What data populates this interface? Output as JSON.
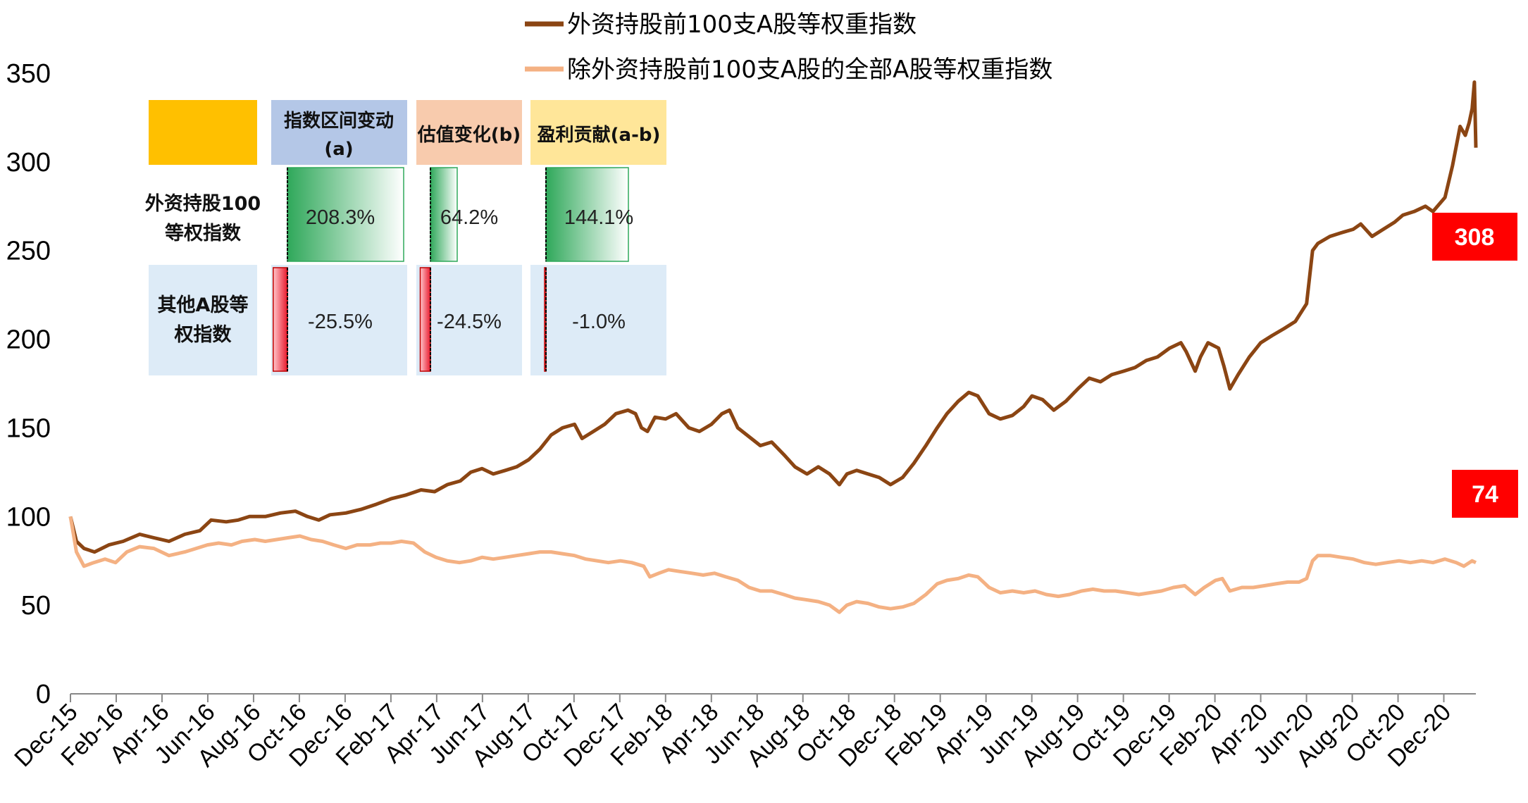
{
  "chart_data": {
    "type": "line",
    "title": "",
    "xlabel": "",
    "ylabel": "",
    "ylim": [
      0,
      350
    ],
    "yticks": [
      0,
      50,
      100,
      150,
      200,
      250,
      300,
      350
    ],
    "xlim": [
      "2015-12-31",
      "2021-02-10"
    ],
    "xtick_labels": [
      "Dec-15",
      "Feb-16",
      "Apr-16",
      "Jun-16",
      "Aug-16",
      "Oct-16",
      "Dec-16",
      "Feb-17",
      "Apr-17",
      "Jun-17",
      "Aug-17",
      "Oct-17",
      "Dec-17",
      "Feb-18",
      "Apr-18",
      "Jun-18",
      "Aug-18",
      "Oct-18",
      "Dec-18",
      "Feb-19",
      "Apr-19",
      "Jun-19",
      "Aug-19",
      "Oct-19",
      "Dec-19",
      "Feb-20",
      "Apr-20",
      "Jun-20",
      "Aug-20",
      "Oct-20",
      "Dec-20"
    ],
    "grid": false,
    "legend_position": "top",
    "series": [
      {
        "name": "外资持股前100支A股等权重指数",
        "color": "#8B4513",
        "end_label": "308",
        "end_label_color": "#FF0000",
        "points": [
          [
            "2015-12-31",
            100
          ],
          [
            "2016-01-08",
            86
          ],
          [
            "2016-01-18",
            82
          ],
          [
            "2016-02-01",
            80
          ],
          [
            "2016-02-20",
            84
          ],
          [
            "2016-03-10",
            86
          ],
          [
            "2016-04-01",
            90
          ],
          [
            "2016-04-20",
            88
          ],
          [
            "2016-05-10",
            86
          ],
          [
            "2016-05-31",
            90
          ],
          [
            "2016-06-20",
            92
          ],
          [
            "2016-07-05",
            98
          ],
          [
            "2016-07-25",
            97
          ],
          [
            "2016-08-10",
            98
          ],
          [
            "2016-08-25",
            100
          ],
          [
            "2016-09-15",
            100
          ],
          [
            "2016-10-05",
            102
          ],
          [
            "2016-10-25",
            103
          ],
          [
            "2016-11-10",
            100
          ],
          [
            "2016-11-25",
            98
          ],
          [
            "2016-12-10",
            101
          ],
          [
            "2016-12-31",
            102
          ],
          [
            "2017-01-20",
            104
          ],
          [
            "2017-02-10",
            107
          ],
          [
            "2017-03-01",
            110
          ],
          [
            "2017-03-20",
            112
          ],
          [
            "2017-04-10",
            115
          ],
          [
            "2017-04-28",
            114
          ],
          [
            "2017-05-15",
            118
          ],
          [
            "2017-06-01",
            120
          ],
          [
            "2017-06-15",
            125
          ],
          [
            "2017-06-30",
            127
          ],
          [
            "2017-07-15",
            124
          ],
          [
            "2017-07-31",
            126
          ],
          [
            "2017-08-15",
            128
          ],
          [
            "2017-08-31",
            132
          ],
          [
            "2017-09-15",
            138
          ],
          [
            "2017-09-30",
            146
          ],
          [
            "2017-10-15",
            150
          ],
          [
            "2017-10-31",
            152
          ],
          [
            "2017-11-10",
            144
          ],
          [
            "2017-11-25",
            148
          ],
          [
            "2017-12-10",
            152
          ],
          [
            "2017-12-25",
            158
          ],
          [
            "2018-01-10",
            160
          ],
          [
            "2018-01-20",
            158
          ],
          [
            "2018-01-28",
            150
          ],
          [
            "2018-02-05",
            148
          ],
          [
            "2018-02-15",
            156
          ],
          [
            "2018-03-01",
            155
          ],
          [
            "2018-03-15",
            158
          ],
          [
            "2018-04-01",
            150
          ],
          [
            "2018-04-15",
            148
          ],
          [
            "2018-05-01",
            152
          ],
          [
            "2018-05-15",
            158
          ],
          [
            "2018-05-25",
            160
          ],
          [
            "2018-06-05",
            150
          ],
          [
            "2018-06-20",
            145
          ],
          [
            "2018-07-05",
            140
          ],
          [
            "2018-07-20",
            142
          ],
          [
            "2018-08-05",
            135
          ],
          [
            "2018-08-20",
            128
          ],
          [
            "2018-09-05",
            124
          ],
          [
            "2018-09-20",
            128
          ],
          [
            "2018-10-05",
            124
          ],
          [
            "2018-10-18",
            118
          ],
          [
            "2018-10-28",
            124
          ],
          [
            "2018-11-10",
            126
          ],
          [
            "2018-11-25",
            124
          ],
          [
            "2018-12-10",
            122
          ],
          [
            "2018-12-25",
            118
          ],
          [
            "2019-01-10",
            122
          ],
          [
            "2019-01-25",
            130
          ],
          [
            "2019-02-10",
            140
          ],
          [
            "2019-02-25",
            150
          ],
          [
            "2019-03-10",
            158
          ],
          [
            "2019-03-25",
            165
          ],
          [
            "2019-04-08",
            170
          ],
          [
            "2019-04-20",
            168
          ],
          [
            "2019-05-05",
            158
          ],
          [
            "2019-05-20",
            155
          ],
          [
            "2019-06-05",
            157
          ],
          [
            "2019-06-20",
            162
          ],
          [
            "2019-07-01",
            168
          ],
          [
            "2019-07-15",
            166
          ],
          [
            "2019-07-30",
            160
          ],
          [
            "2019-08-15",
            165
          ],
          [
            "2019-08-31",
            172
          ],
          [
            "2019-09-15",
            178
          ],
          [
            "2019-09-30",
            176
          ],
          [
            "2019-10-15",
            180
          ],
          [
            "2019-10-31",
            182
          ],
          [
            "2019-11-15",
            184
          ],
          [
            "2019-11-30",
            188
          ],
          [
            "2019-12-15",
            190
          ],
          [
            "2019-12-31",
            195
          ],
          [
            "2020-01-15",
            198
          ],
          [
            "2020-01-22",
            193
          ],
          [
            "2020-02-03",
            182
          ],
          [
            "2020-02-10",
            190
          ],
          [
            "2020-02-20",
            198
          ],
          [
            "2020-03-05",
            195
          ],
          [
            "2020-03-12",
            185
          ],
          [
            "2020-03-20",
            172
          ],
          [
            "2020-03-31",
            180
          ],
          [
            "2020-04-15",
            190
          ],
          [
            "2020-04-30",
            198
          ],
          [
            "2020-05-15",
            202
          ],
          [
            "2020-05-31",
            206
          ],
          [
            "2020-06-15",
            210
          ],
          [
            "2020-06-30",
            220
          ],
          [
            "2020-07-08",
            250
          ],
          [
            "2020-07-15",
            254
          ],
          [
            "2020-07-31",
            258
          ],
          [
            "2020-08-15",
            260
          ],
          [
            "2020-08-31",
            262
          ],
          [
            "2020-09-10",
            265
          ],
          [
            "2020-09-25",
            258
          ],
          [
            "2020-10-10",
            262
          ],
          [
            "2020-10-25",
            266
          ],
          [
            "2020-11-05",
            270
          ],
          [
            "2020-11-20",
            272
          ],
          [
            "2020-12-05",
            275
          ],
          [
            "2020-12-15",
            272
          ],
          [
            "2020-12-31",
            280
          ],
          [
            "2021-01-10",
            298
          ],
          [
            "2021-01-20",
            320
          ],
          [
            "2021-01-27",
            315
          ],
          [
            "2021-02-01",
            322
          ],
          [
            "2021-02-05",
            330
          ],
          [
            "2021-02-08",
            345
          ],
          [
            "2021-02-10",
            308
          ]
        ]
      },
      {
        "name": "除外资持股前100支A股的全部A股等权重指数",
        "color": "#F4B183",
        "end_label": "74",
        "end_label_color": "#FF0000",
        "points": [
          [
            "2015-12-31",
            100
          ],
          [
            "2016-01-08",
            80
          ],
          [
            "2016-01-18",
            72
          ],
          [
            "2016-01-31",
            74
          ],
          [
            "2016-02-15",
            76
          ],
          [
            "2016-02-29",
            74
          ],
          [
            "2016-03-15",
            80
          ],
          [
            "2016-04-01",
            83
          ],
          [
            "2016-04-20",
            82
          ],
          [
            "2016-05-10",
            78
          ],
          [
            "2016-05-31",
            80
          ],
          [
            "2016-06-15",
            82
          ],
          [
            "2016-06-30",
            84
          ],
          [
            "2016-07-15",
            85
          ],
          [
            "2016-08-01",
            84
          ],
          [
            "2016-08-15",
            86
          ],
          [
            "2016-09-01",
            87
          ],
          [
            "2016-09-15",
            86
          ],
          [
            "2016-09-30",
            87
          ],
          [
            "2016-10-15",
            88
          ],
          [
            "2016-10-31",
            89
          ],
          [
            "2016-11-15",
            87
          ],
          [
            "2016-11-30",
            86
          ],
          [
            "2016-12-15",
            84
          ],
          [
            "2016-12-31",
            82
          ],
          [
            "2017-01-15",
            84
          ],
          [
            "2017-02-01",
            84
          ],
          [
            "2017-02-15",
            85
          ],
          [
            "2017-03-01",
            85
          ],
          [
            "2017-03-15",
            86
          ],
          [
            "2017-03-31",
            85
          ],
          [
            "2017-04-15",
            80
          ],
          [
            "2017-04-30",
            77
          ],
          [
            "2017-05-15",
            75
          ],
          [
            "2017-05-31",
            74
          ],
          [
            "2017-06-15",
            75
          ],
          [
            "2017-06-30",
            77
          ],
          [
            "2017-07-15",
            76
          ],
          [
            "2017-07-31",
            77
          ],
          [
            "2017-08-15",
            78
          ],
          [
            "2017-08-31",
            79
          ],
          [
            "2017-09-15",
            80
          ],
          [
            "2017-09-30",
            80
          ],
          [
            "2017-10-15",
            79
          ],
          [
            "2017-10-31",
            78
          ],
          [
            "2017-11-15",
            76
          ],
          [
            "2017-11-30",
            75
          ],
          [
            "2017-12-15",
            74
          ],
          [
            "2017-12-31",
            75
          ],
          [
            "2018-01-15",
            74
          ],
          [
            "2018-01-31",
            72
          ],
          [
            "2018-02-08",
            66
          ],
          [
            "2018-02-20",
            68
          ],
          [
            "2018-03-05",
            70
          ],
          [
            "2018-03-20",
            69
          ],
          [
            "2018-04-05",
            68
          ],
          [
            "2018-04-20",
            67
          ],
          [
            "2018-05-05",
            68
          ],
          [
            "2018-05-20",
            66
          ],
          [
            "2018-06-05",
            64
          ],
          [
            "2018-06-20",
            60
          ],
          [
            "2018-07-05",
            58
          ],
          [
            "2018-07-20",
            58
          ],
          [
            "2018-08-05",
            56
          ],
          [
            "2018-08-20",
            54
          ],
          [
            "2018-09-05",
            53
          ],
          [
            "2018-09-20",
            52
          ],
          [
            "2018-10-05",
            50
          ],
          [
            "2018-10-18",
            46
          ],
          [
            "2018-10-28",
            50
          ],
          [
            "2018-11-10",
            52
          ],
          [
            "2018-11-25",
            51
          ],
          [
            "2018-12-10",
            49
          ],
          [
            "2018-12-25",
            48
          ],
          [
            "2019-01-10",
            49
          ],
          [
            "2019-01-25",
            51
          ],
          [
            "2019-02-10",
            56
          ],
          [
            "2019-02-25",
            62
          ],
          [
            "2019-03-10",
            64
          ],
          [
            "2019-03-25",
            65
          ],
          [
            "2019-04-08",
            67
          ],
          [
            "2019-04-20",
            66
          ],
          [
            "2019-05-05",
            60
          ],
          [
            "2019-05-20",
            57
          ],
          [
            "2019-06-05",
            58
          ],
          [
            "2019-06-20",
            57
          ],
          [
            "2019-07-05",
            58
          ],
          [
            "2019-07-20",
            56
          ],
          [
            "2019-08-05",
            55
          ],
          [
            "2019-08-20",
            56
          ],
          [
            "2019-09-05",
            58
          ],
          [
            "2019-09-20",
            59
          ],
          [
            "2019-10-05",
            58
          ],
          [
            "2019-10-20",
            58
          ],
          [
            "2019-11-05",
            57
          ],
          [
            "2019-11-20",
            56
          ],
          [
            "2019-12-05",
            57
          ],
          [
            "2019-12-20",
            58
          ],
          [
            "2020-01-05",
            60
          ],
          [
            "2020-01-20",
            61
          ],
          [
            "2020-02-03",
            56
          ],
          [
            "2020-02-15",
            60
          ],
          [
            "2020-03-01",
            64
          ],
          [
            "2020-03-10",
            65
          ],
          [
            "2020-03-20",
            58
          ],
          [
            "2020-04-05",
            60
          ],
          [
            "2020-04-20",
            60
          ],
          [
            "2020-05-05",
            61
          ],
          [
            "2020-05-20",
            62
          ],
          [
            "2020-06-05",
            63
          ],
          [
            "2020-06-20",
            63
          ],
          [
            "2020-06-30",
            65
          ],
          [
            "2020-07-08",
            75
          ],
          [
            "2020-07-15",
            78
          ],
          [
            "2020-07-31",
            78
          ],
          [
            "2020-08-15",
            77
          ],
          [
            "2020-08-31",
            76
          ],
          [
            "2020-09-15",
            74
          ],
          [
            "2020-09-30",
            73
          ],
          [
            "2020-10-15",
            74
          ],
          [
            "2020-10-31",
            75
          ],
          [
            "2020-11-15",
            74
          ],
          [
            "2020-11-30",
            75
          ],
          [
            "2020-12-15",
            74
          ],
          [
            "2020-12-31",
            76
          ],
          [
            "2021-01-15",
            74
          ],
          [
            "2021-01-25",
            72
          ],
          [
            "2021-02-05",
            75
          ],
          [
            "2021-02-10",
            74
          ]
        ]
      }
    ],
    "inset_table": {
      "headers": [
        "指数区间变动",
        "(a)",
        "估值变化(b)",
        "盈利贡献(a-b)"
      ],
      "header_colors": [
        "#FFC000",
        "#B4C7E7",
        "#F8CBAD",
        "#FFE699"
      ],
      "rows": [
        {
          "label_line1": "外资持股100",
          "label_line2": "等权指数",
          "cells": [
            {
              "value": 208.3,
              "text": "208.3%"
            },
            {
              "value": 64.2,
              "text": "64.2%"
            },
            {
              "value": 144.1,
              "text": "144.1%"
            }
          ]
        },
        {
          "label_line1": "其他A股等",
          "label_line2": "权指数",
          "cells": [
            {
              "value": -25.5,
              "text": "-25.5%"
            },
            {
              "value": -24.5,
              "text": "-24.5%"
            },
            {
              "value": -1.0,
              "text": "-1.0%"
            }
          ]
        }
      ],
      "row_bg_color": "#DDEBF7",
      "positive_color": "#3DB36B",
      "negative_color": "#E8192C"
    }
  }
}
